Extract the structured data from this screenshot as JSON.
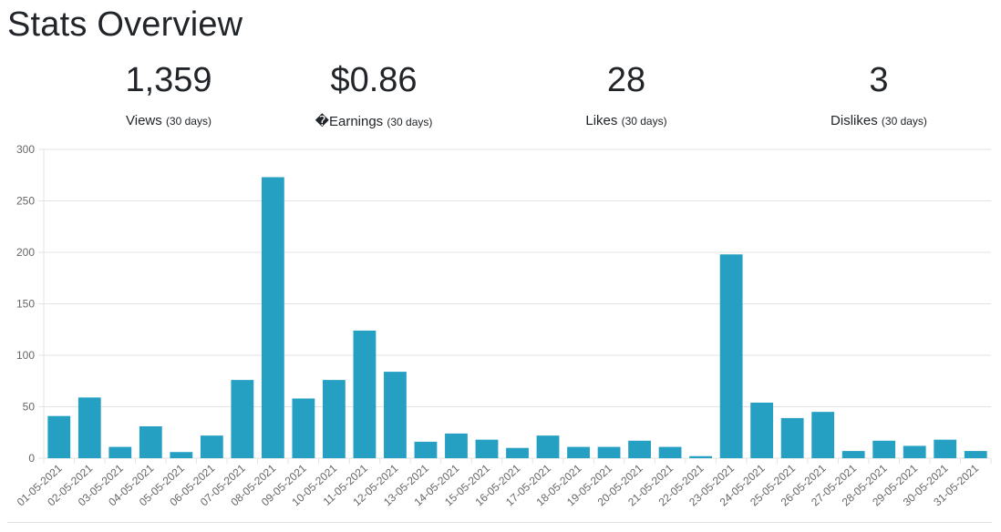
{
  "page_title": "Stats Overview",
  "stats": [
    {
      "value": "1,359",
      "label": "Views",
      "sub": "(30 days)"
    },
    {
      "value": "$0.86",
      "label": "�Earnings",
      "sub": "(30 days)"
    },
    {
      "value": "28",
      "label": "Likes",
      "sub": "(30 days)"
    },
    {
      "value": "3",
      "label": "Dislikes",
      "sub": "(30 days)"
    }
  ],
  "colors": {
    "bar": "#25a0c3",
    "grid": "#e3e3e3",
    "axis_text": "#666666"
  },
  "chart_data": {
    "type": "bar",
    "categories": [
      "01-05-2021",
      "02-05-2021",
      "03-05-2021",
      "04-05-2021",
      "05-05-2021",
      "06-05-2021",
      "07-05-2021",
      "08-05-2021",
      "09-05-2021",
      "10-05-2021",
      "11-05-2021",
      "12-05-2021",
      "13-05-2021",
      "14-05-2021",
      "15-05-2021",
      "16-05-2021",
      "17-05-2021",
      "18-05-2021",
      "19-05-2021",
      "20-05-2021",
      "21-05-2021",
      "22-05-2021",
      "23-05-2021",
      "24-05-2021",
      "25-05-2021",
      "26-05-2021",
      "27-05-2021",
      "28-05-2021",
      "29-05-2021",
      "30-05-2021",
      "31-05-2021"
    ],
    "values": [
      41,
      59,
      11,
      31,
      6,
      22,
      76,
      273,
      58,
      76,
      124,
      84,
      16,
      24,
      18,
      10,
      22,
      11,
      11,
      17,
      11,
      2,
      198,
      54,
      39,
      45,
      7,
      17,
      12,
      18,
      7
    ],
    "ylim": [
      0,
      300
    ],
    "yticks": [
      0,
      50,
      100,
      150,
      200,
      250,
      300
    ],
    "grid": true,
    "legend": "none"
  }
}
